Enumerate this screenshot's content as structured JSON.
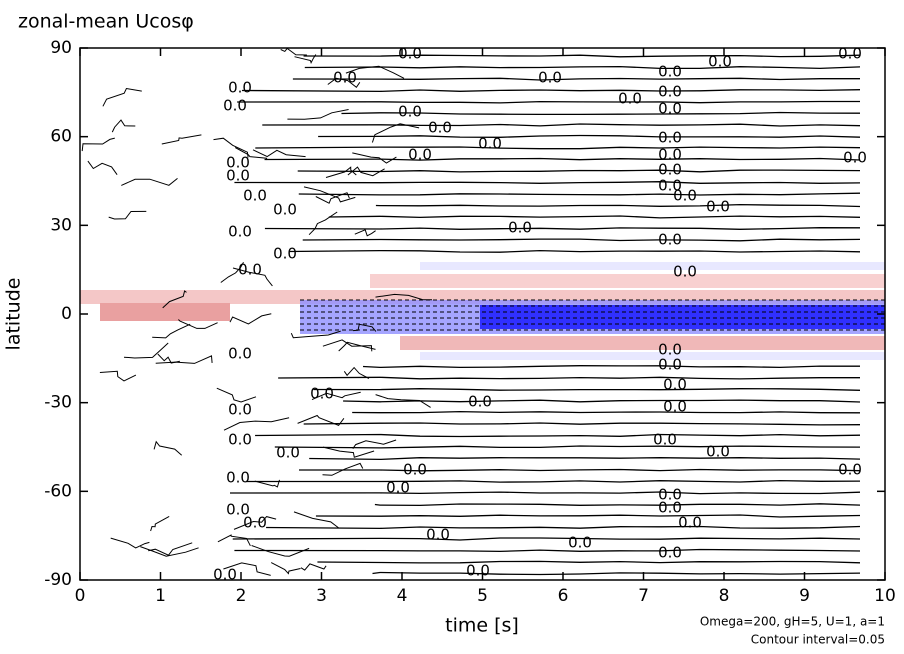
{
  "chart_data": {
    "type": "contour",
    "title": "zonal-mean Ucosφ",
    "xlabel": "time [s]",
    "ylabel": "latitude",
    "xlim": [
      0,
      10
    ],
    "ylim": [
      -90,
      90
    ],
    "xticks": [
      0,
      1,
      2,
      3,
      4,
      5,
      6,
      7,
      8,
      9,
      10
    ],
    "yticks": [
      -90,
      -60,
      -30,
      0,
      30,
      60,
      90
    ],
    "contour_label": "0.0",
    "annotations": [
      "Omega=200, gH=5, U=1, a=1",
      "Contour interval=0.05"
    ]
  }
}
